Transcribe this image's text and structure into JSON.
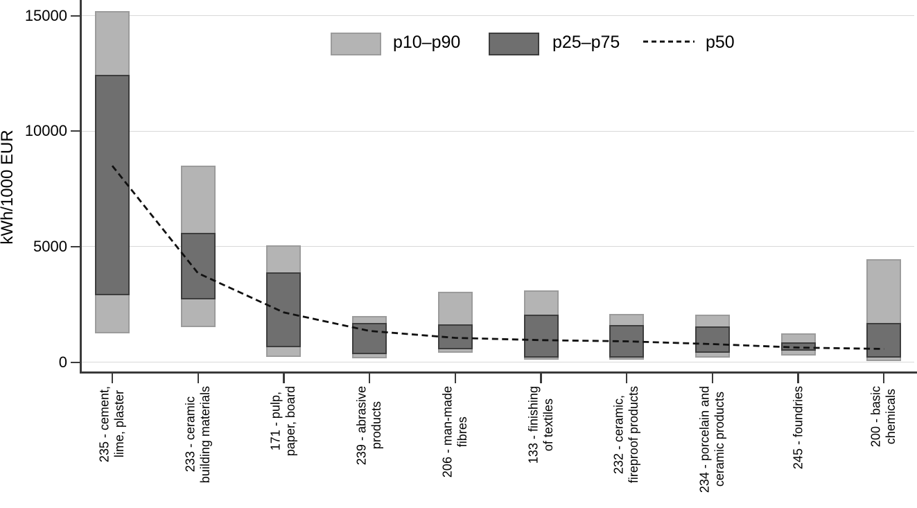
{
  "chart_data": {
    "type": "bar",
    "subtype": "percentile-range-bars-with-median-line",
    "title": "",
    "xlabel": "",
    "ylabel": "kWh/1000 EUR",
    "ylim": [
      0,
      15500
    ],
    "yticks": [
      0,
      5000,
      10000,
      15000
    ],
    "grid": "horizontal",
    "legend_position": "top-inside",
    "legend": [
      {
        "label": "p10–p90",
        "swatch": "light-gray-box"
      },
      {
        "label": "p25–p75",
        "swatch": "dark-gray-box"
      },
      {
        "label": "p50",
        "swatch": "black-dashed-line"
      }
    ],
    "categories": [
      [
        "235 - cement,",
        "lime, plaster"
      ],
      [
        "233 - ceramic",
        "building materials"
      ],
      [
        "171 - pulp,",
        "paper, board"
      ],
      [
        "239 - abrasive",
        "products"
      ],
      [
        "206 - man-made",
        "fibres"
      ],
      [
        "133 - finishing",
        "of textiles"
      ],
      [
        "232 - ceramic,",
        "fireproof products"
      ],
      [
        "234 - porcelain and",
        "ceramic products"
      ],
      [
        "245 - foundries"
      ],
      [
        "200 - basic",
        "chemicals"
      ]
    ],
    "series": [
      {
        "name": "p10–p90",
        "type": "range-bar",
        "low": [
          1250,
          1500,
          220,
          150,
          400,
          100,
          120,
          200,
          270,
          50
        ],
        "high": [
          15200,
          8500,
          5050,
          2000,
          3050,
          3100,
          2100,
          2050,
          1250,
          4450
        ],
        "fill": "#b4b4b4",
        "border": "#9b9b9b"
      },
      {
        "name": "p25–p75",
        "type": "range-bar",
        "low": [
          2900,
          2700,
          650,
          350,
          550,
          200,
          200,
          400,
          500,
          180
        ],
        "high": [
          12450,
          5600,
          3900,
          1700,
          1650,
          2050,
          1600,
          1550,
          850,
          1700
        ],
        "fill": "#6f6f6f",
        "border": "#3d3d3d"
      },
      {
        "name": "p50",
        "type": "dashed-line",
        "color": "#111111",
        "values": [
          8500,
          3850,
          2150,
          1350,
          1050,
          950,
          900,
          780,
          630,
          570
        ]
      }
    ],
    "colors": {
      "background": "#ffffff",
      "axis": "#3a3a3a",
      "grid": "#d8d8d8",
      "text": "#000000"
    }
  }
}
